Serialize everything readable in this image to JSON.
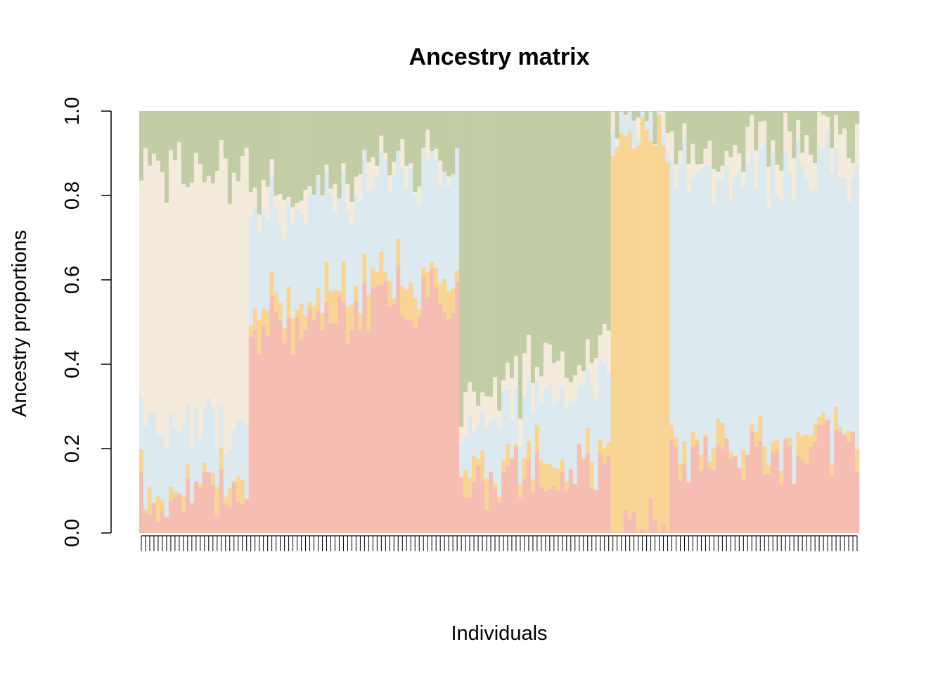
{
  "chart_data": {
    "type": "bar",
    "stacked": true,
    "title": "Ancestry matrix",
    "xlabel": "Individuals",
    "ylabel": "Ancestry proportions",
    "ylim": [
      0,
      1
    ],
    "yticks": [
      "0.0",
      "0.2",
      "0.4",
      "0.6",
      "0.8",
      "1.0"
    ],
    "colors": [
      "#f6bdb3",
      "#f9d595",
      "#dce9ee",
      "#f4ebdc",
      "#c3cda5"
    ],
    "groups": [
      {
        "n": 26,
        "start": [
          0.1,
          0.02,
          0.18,
          0.58,
          0.12
        ],
        "end": [
          0.1,
          0.02,
          0.12,
          0.61,
          0.15
        ]
      },
      {
        "n": 50,
        "start": [
          0.5,
          0.05,
          0.2,
          0.05,
          0.2
        ],
        "end": [
          0.55,
          0.06,
          0.26,
          0.03,
          0.1
        ]
      },
      {
        "n": 36,
        "start": [
          0.1,
          0.05,
          0.1,
          0.06,
          0.69
        ],
        "end": [
          0.17,
          0.02,
          0.18,
          0.08,
          0.55
        ]
      },
      {
        "n": 14,
        "start": [
          0.01,
          0.95,
          0.02,
          0.01,
          0.01
        ],
        "end": [
          0.02,
          0.9,
          0.04,
          0.02,
          0.02
        ]
      },
      {
        "n": 45,
        "start": [
          0.18,
          0.02,
          0.66,
          0.05,
          0.09
        ],
        "end": [
          0.2,
          0.03,
          0.63,
          0.08,
          0.06
        ]
      }
    ]
  }
}
